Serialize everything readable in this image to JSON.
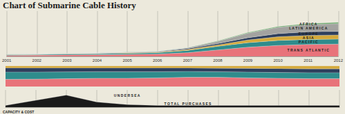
{
  "chart_data": [
    {
      "type": "area",
      "title": "Chart of Submarine Cable History",
      "categories": [
        "2001",
        "2002",
        "2003",
        "2004",
        "2005",
        "2006",
        "2007",
        "2008",
        "2009",
        "2010",
        "2011",
        "2012"
      ],
      "stacked": true,
      "grid": true,
      "tick_labels": "x",
      "ylim": [
        0,
        100
      ],
      "series": [
        {
          "name": "TRANS ATLANTIC",
          "color": "#e8737a",
          "values": [
            2,
            2.5,
            3,
            3.5,
            4,
            5,
            8,
            14,
            20,
            24,
            26,
            27
          ]
        },
        {
          "name": "PACIFIC",
          "color": "#2f8c8c",
          "values": [
            1.5,
            1.5,
            2,
            2,
            2.5,
            3,
            5,
            8,
            10,
            11,
            11,
            11
          ]
        },
        {
          "name": "ASIA",
          "color": "#d4a93a",
          "values": [
            0.5,
            0.5,
            0.5,
            0.5,
            1,
            1,
            2,
            3,
            6,
            8,
            9,
            9
          ]
        },
        {
          "name": "EUROPE",
          "color": "#2e3f5c",
          "values": [
            0.5,
            0.5,
            0.5,
            1,
            1,
            1,
            2,
            3,
            5,
            7,
            8,
            8
          ]
        },
        {
          "name": "LATIN AMERICA",
          "color": "#a3a3a0",
          "values": [
            0.5,
            0.5,
            0.5,
            0.5,
            0.5,
            1,
            2,
            5,
            10,
            14,
            16,
            17
          ]
        },
        {
          "name": "AFRICA",
          "color": "#6aa56a",
          "values": [
            0.2,
            0.2,
            0.2,
            0.2,
            0.3,
            0.3,
            0.5,
            1,
            1.5,
            2,
            2.5,
            3
          ]
        }
      ]
    },
    {
      "type": "area",
      "categories": [
        "2001",
        "2002",
        "2003",
        "2004",
        "2005",
        "2006",
        "2007",
        "2008",
        "2009",
        "2010",
        "2011",
        "2012"
      ],
      "stacked": true,
      "tick_labels": false,
      "ylim": [
        0,
        100
      ],
      "series": [
        {
          "color": "#e8737a",
          "values": [
            35,
            36,
            38,
            40,
            40,
            42,
            45,
            45,
            42,
            40,
            38,
            38
          ]
        },
        {
          "color": "#2f8c8c",
          "values": [
            35,
            34,
            33,
            32,
            32,
            30,
            28,
            27,
            28,
            28,
            29,
            29
          ]
        },
        {
          "color": "#2e3f5c",
          "values": [
            20,
            20,
            19,
            18,
            18,
            18,
            17,
            17,
            18,
            19,
            19,
            19
          ]
        },
        {
          "color": "#d4a93a",
          "values": [
            10,
            10,
            10,
            10,
            10,
            10,
            10,
            11,
            12,
            13,
            14,
            14
          ]
        }
      ]
    },
    {
      "type": "area",
      "title": "CAPACITY & COST",
      "categories": [
        "2001",
        "2002",
        "2003",
        "2004",
        "2005",
        "2006",
        "2007",
        "2008",
        "2009",
        "2010",
        "2011",
        "2012"
      ],
      "tick_labels": false,
      "ylim": [
        0,
        20
      ],
      "annotations": [
        "UNDERSEA",
        "TOTAL PURCHASES"
      ],
      "series": [
        {
          "color": "#1a1a1a",
          "values": [
            2,
            8,
            14,
            6,
            3,
            2,
            2,
            2,
            2,
            2,
            2,
            2
          ]
        }
      ]
    }
  ]
}
